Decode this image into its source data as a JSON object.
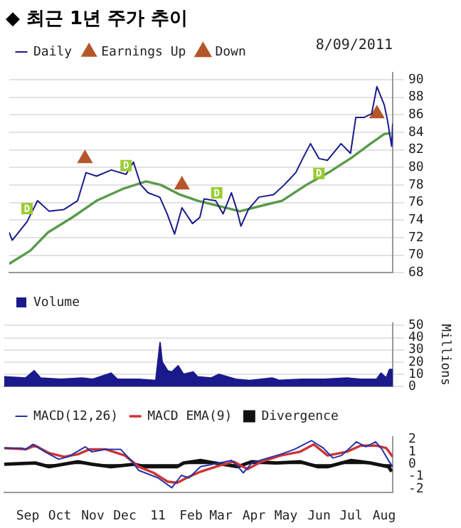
{
  "chart_data": [
    {
      "type": "line",
      "title": "◆ 최근 1년 주가 추이",
      "annotations": [
        "8/09/2011",
        {
          "text": "D",
          "x": "2010-08-27",
          "y": 75.3
        },
        {
          "text": "D",
          "x": "2010-11-29",
          "y": 80.2
        },
        {
          "text": "D",
          "x": "2011-02-23",
          "y": 77.1
        },
        {
          "text": "D",
          "x": "2011-05-31",
          "y": 79.3
        }
      ],
      "xlim": [
        "2010-08-10",
        "2011-08-09"
      ],
      "xticks": [
        {
          "value": "2010-09-01",
          "label": null
        },
        {
          "value": "2010-10-01",
          "label": null
        },
        {
          "value": "2010-11-01",
          "label": null
        },
        {
          "value": "2010-12-01",
          "label": null
        },
        {
          "value": "2011-01-01",
          "label": null
        },
        {
          "value": "2011-02-01",
          "label": null
        },
        {
          "value": "2011-03-01",
          "label": null
        },
        {
          "value": "2011-04-01",
          "label": null
        },
        {
          "value": "2011-05-01",
          "label": null
        },
        {
          "value": "2011-06-01",
          "label": null
        },
        {
          "value": "2011-07-01",
          "label": null
        },
        {
          "value": "2011-08-01",
          "label": null
        }
      ],
      "ylim": [
        68,
        90.8
      ],
      "yticks": [
        68,
        70,
        72,
        74,
        76,
        78,
        80,
        82,
        84,
        86,
        88,
        90
      ],
      "grid": true,
      "legend": "top left",
      "tick_labels": "y",
      "marker": "none",
      "series": [
        {
          "name": "Daily",
          "color": "#1a1a8c",
          "x": [
            "2010-08-10",
            "2010-08-13",
            "2010-08-27",
            "2010-09-06",
            "2010-09-17",
            "2010-10-01",
            "2010-10-14",
            "2010-10-22",
            "2010-11-01",
            "2010-11-15",
            "2010-11-29",
            "2010-12-06",
            "2010-12-13",
            "2010-12-20",
            "2010-12-31",
            "2011-01-07",
            "2011-01-14",
            "2011-01-21",
            "2011-01-31",
            "2011-02-07",
            "2011-02-11",
            "2011-02-22",
            "2011-03-01",
            "2011-03-09",
            "2011-03-14",
            "2011-03-18",
            "2011-03-25",
            "2011-04-04",
            "2011-04-18",
            "2011-04-28",
            "2011-05-09",
            "2011-05-16",
            "2011-05-23",
            "2011-05-31",
            "2011-06-08",
            "2011-06-21",
            "2011-06-30",
            "2011-07-05",
            "2011-07-13",
            "2011-07-20",
            "2011-07-25",
            "2011-08-01",
            "2011-08-04",
            "2011-08-08",
            "2011-08-09"
          ],
          "values": [
            72.6,
            71.7,
            73.8,
            76.2,
            75.0,
            75.2,
            76.2,
            79.4,
            79.0,
            79.7,
            79.2,
            80.6,
            78.0,
            77.1,
            76.6,
            74.7,
            72.4,
            75.4,
            73.6,
            74.3,
            76.4,
            76.2,
            74.7,
            77.1,
            75.2,
            73.3,
            75.2,
            76.6,
            76.9,
            78.0,
            79.4,
            81.1,
            82.7,
            81.0,
            80.8,
            82.7,
            81.6,
            85.7,
            85.7,
            86.1,
            89.2,
            87.1,
            85.4,
            82.4,
            85.0
          ]
        },
        {
          "color": "#5a9a4a",
          "x": [
            "2010-08-10",
            "2010-08-30",
            "2010-09-16",
            "2010-10-09",
            "2010-11-01",
            "2010-11-27",
            "2010-12-18",
            "2011-01-01",
            "2011-01-19",
            "2011-02-05",
            "2011-02-28",
            "2011-03-17",
            "2011-04-09",
            "2011-04-26",
            "2011-05-19",
            "2011-06-09",
            "2011-07-01",
            "2011-07-19",
            "2011-08-01",
            "2011-08-07"
          ],
          "values": [
            69.0,
            70.5,
            72.6,
            74.3,
            76.2,
            77.6,
            78.4,
            78.0,
            76.9,
            76.2,
            75.5,
            75.0,
            75.7,
            76.2,
            78.0,
            79.4,
            81.1,
            82.7,
            83.8,
            83.9
          ]
        },
        {
          "name": "Earnings Up",
          "type": "scatter",
          "marker": "triangle",
          "color": "#b5562a",
          "x": [
            "2010-10-21",
            "2011-01-21",
            "2011-07-25"
          ],
          "values": [
            81.0,
            78.0,
            86.1
          ]
        },
        {
          "name": "Down",
          "type": "scatter",
          "marker": "triangle",
          "color": "#b5562a"
        }
      ]
    },
    {
      "type": "area",
      "ylabel": "Millions",
      "xlim": [
        "2010-08-10",
        "2011-08-09"
      ],
      "xticks": [
        {
          "value": "2010-09-01",
          "label": null
        },
        {
          "value": "2010-10-01",
          "label": null
        },
        {
          "value": "2010-11-01",
          "label": null
        },
        {
          "value": "2010-12-01",
          "label": null
        },
        {
          "value": "2011-01-01",
          "label": null
        },
        {
          "value": "2011-02-01",
          "label": null
        },
        {
          "value": "2011-03-01",
          "label": null
        },
        {
          "value": "2011-04-01",
          "label": null
        },
        {
          "value": "2011-05-01",
          "label": null
        },
        {
          "value": "2011-06-01",
          "label": null
        },
        {
          "value": "2011-07-01",
          "label": null
        },
        {
          "value": "2011-08-01",
          "label": null
        }
      ],
      "ylim": [
        0,
        52
      ],
      "yticks": [
        0,
        10,
        20,
        30,
        40,
        50
      ],
      "grid": true,
      "legend": "top left",
      "tick_labels": "y",
      "marker": "none",
      "series": [
        {
          "name": "Volume",
          "color": "#1a1a8c",
          "x": [
            "2010-08-10",
            "2010-08-30",
            "2010-09-07",
            "2010-09-13",
            "2010-10-02",
            "2010-10-22",
            "2010-11-01",
            "2010-11-18",
            "2010-11-24",
            "2010-12-14",
            "2010-12-30",
            "2011-01-03",
            "2011-01-05",
            "2011-01-10",
            "2011-01-14",
            "2011-01-20",
            "2011-01-25",
            "2011-02-03",
            "2011-02-07",
            "2011-02-20",
            "2011-02-27",
            "2011-03-15",
            "2011-03-28",
            "2011-04-18",
            "2011-04-25",
            "2011-05-16",
            "2011-06-06",
            "2011-06-27",
            "2011-07-10",
            "2011-07-25",
            "2011-07-29",
            "2011-08-03",
            "2011-08-06",
            "2011-08-09"
          ],
          "values": [
            8,
            7,
            13,
            7,
            6,
            7,
            6,
            11,
            6,
            6,
            5,
            36,
            20,
            13,
            12,
            17,
            10,
            12,
            8,
            7,
            10,
            6,
            5,
            7,
            5,
            6,
            6,
            7,
            6,
            6,
            11,
            7,
            14,
            14
          ]
        }
      ]
    },
    {
      "type": "line",
      "xlim": [
        "2010-08-10",
        "2011-08-09"
      ],
      "xticks": [
        {
          "value": "2010-09-01",
          "label": "Sep"
        },
        {
          "value": "2010-10-01",
          "label": "Oct"
        },
        {
          "value": "2010-11-01",
          "label": "Nov"
        },
        {
          "value": "2010-12-01",
          "label": "Dec"
        },
        {
          "value": "2011-01-01",
          "label": "11"
        },
        {
          "value": "2011-02-01",
          "label": "Feb"
        },
        {
          "value": "2011-03-01",
          "label": "Mar"
        },
        {
          "value": "2011-04-01",
          "label": "Apr"
        },
        {
          "value": "2011-05-01",
          "label": "May"
        },
        {
          "value": "2011-06-01",
          "label": "Jun"
        },
        {
          "value": "2011-07-01",
          "label": "Jul"
        },
        {
          "value": "2011-08-01",
          "label": "Aug"
        }
      ],
      "ylim": [
        -2.3,
        2.2
      ],
      "yticks": [
        -2,
        -1,
        0,
        1,
        2
      ],
      "grid": false,
      "legend": "top left",
      "marker": "none",
      "series": [
        {
          "name": "MACD(12,26)",
          "color": "#2233aa",
          "x": [
            "2010-08-10",
            "2010-08-26",
            "2010-08-30",
            "2010-09-06",
            "2010-09-17",
            "2010-09-30",
            "2010-10-09",
            "2010-10-25",
            "2010-10-31",
            "2010-11-13",
            "2010-11-27",
            "2010-12-08",
            "2010-12-14",
            "2010-12-23",
            "2011-01-01",
            "2011-01-14",
            "2011-01-23",
            "2011-01-30",
            "2011-02-10",
            "2011-02-28",
            "2011-03-11",
            "2011-03-17",
            "2011-03-22",
            "2011-03-30",
            "2011-04-10",
            "2011-04-26",
            "2011-05-09",
            "2011-05-25",
            "2011-06-05",
            "2011-06-14",
            "2011-06-22",
            "2011-07-06",
            "2011-07-15",
            "2011-07-24",
            "2011-07-30",
            "2011-08-05",
            "2011-08-09"
          ],
          "values": [
            1.3,
            1.3,
            1.2,
            1.6,
            1.0,
            0.4,
            0.6,
            1.4,
            1.0,
            1.2,
            1.2,
            0.2,
            -0.5,
            -0.8,
            -1.1,
            -1.9,
            -0.9,
            -1.1,
            -0.2,
            0.1,
            0.3,
            -0.2,
            -0.7,
            0.1,
            0.4,
            0.8,
            1.2,
            1.9,
            1.3,
            0.5,
            0.7,
            1.8,
            1.4,
            1.8,
            1.2,
            0.3,
            -0.2
          ]
        },
        {
          "name": "MACD EMA(9)",
          "color": "#cc3333",
          "x": [
            "2010-08-10",
            "2010-08-30",
            "2010-09-08",
            "2010-09-21",
            "2010-10-05",
            "2010-10-18",
            "2010-10-29",
            "2010-11-13",
            "2010-12-01",
            "2010-12-14",
            "2010-12-28",
            "2011-01-10",
            "2011-01-19",
            "2011-01-28",
            "2011-02-10",
            "2011-02-28",
            "2011-03-13",
            "2011-03-26",
            "2011-04-08",
            "2011-04-26",
            "2011-05-14",
            "2011-05-27",
            "2011-06-09",
            "2011-06-27",
            "2011-07-10",
            "2011-07-24",
            "2011-08-03",
            "2011-08-09"
          ],
          "values": [
            1.3,
            1.2,
            1.5,
            0.9,
            0.6,
            0.8,
            1.2,
            1.2,
            0.7,
            -0.2,
            -0.7,
            -1.4,
            -1.5,
            -1.1,
            -0.6,
            -0.1,
            0.2,
            -0.4,
            0.2,
            0.7,
            1.0,
            1.6,
            0.7,
            1.0,
            1.5,
            1.5,
            1.3,
            0.6
          ]
        },
        {
          "name": "Divergence",
          "type": "area",
          "color": "#111111",
          "x": [
            "2010-08-10",
            "2010-09-08",
            "2010-09-21",
            "2010-10-18",
            "2010-10-31",
            "2010-11-18",
            "2010-12-10",
            "2010-12-19",
            "2011-01-01",
            "2011-01-19",
            "2011-01-25",
            "2011-02-10",
            "2011-02-23",
            "2011-03-17",
            "2011-03-30",
            "2011-04-22",
            "2011-05-14",
            "2011-05-31",
            "2011-06-09",
            "2011-07-01",
            "2011-07-19",
            "2011-08-05",
            "2011-08-08"
          ],
          "values": [
            0,
            0.1,
            -0.2,
            0.2,
            0,
            -0.2,
            0,
            -0.2,
            -0.2,
            -0.2,
            0.1,
            0.3,
            0.1,
            -0.2,
            0.2,
            0.1,
            0.2,
            -0.2,
            -0.2,
            0.3,
            0.1,
            -0.2,
            -0.6
          ]
        }
      ]
    }
  ]
}
